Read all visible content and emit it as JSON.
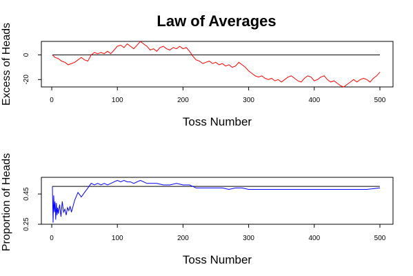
{
  "chart_data": [
    {
      "type": "line",
      "title": "Law of Averages",
      "xlabel": "Toss Number",
      "ylabel": "Excess of Heads",
      "xlim": [
        1,
        500
      ],
      "ylim": [
        -26,
        11
      ],
      "x_ticks": [
        0,
        100,
        200,
        300,
        400,
        500
      ],
      "y_ticks": [
        -20,
        0
      ],
      "reference_line": 0,
      "color": "#ff0000",
      "series": [
        {
          "x": [
            1,
            5,
            10,
            15,
            20,
            25,
            30,
            35,
            40,
            45,
            50,
            55,
            60,
            65,
            70,
            75,
            80,
            85,
            90,
            95,
            100,
            105,
            110,
            115,
            120,
            125,
            130,
            135,
            140,
            145,
            150,
            155,
            160,
            165,
            170,
            175,
            180,
            185,
            190,
            195,
            200,
            205,
            210,
            215,
            220,
            225,
            230,
            235,
            240,
            245,
            250,
            255,
            260,
            265,
            270,
            275,
            280,
            285,
            290,
            295,
            300,
            305,
            310,
            315,
            320,
            325,
            330,
            335,
            340,
            345,
            350,
            355,
            360,
            365,
            370,
            375,
            380,
            385,
            390,
            395,
            400,
            405,
            410,
            415,
            420,
            425,
            430,
            435,
            440,
            445,
            450,
            455,
            460,
            465,
            470,
            475,
            480,
            485,
            490,
            495,
            500
          ],
          "values": [
            0,
            -2,
            -3,
            -5,
            -6,
            -8,
            -7,
            -6,
            -4,
            -2,
            -4,
            -5,
            0,
            2,
            1,
            2,
            1,
            3,
            1,
            4,
            7,
            8,
            6,
            9,
            7,
            5,
            8,
            11,
            9,
            7,
            4,
            5,
            3,
            6,
            7,
            5,
            4,
            6,
            5,
            7,
            5,
            6,
            3,
            -1,
            -4,
            -5,
            -7,
            -6,
            -5,
            -7,
            -6,
            -8,
            -7,
            -9,
            -8,
            -10,
            -9,
            -6,
            -8,
            -10,
            -13,
            -15,
            -17,
            -18,
            -17,
            -19,
            -20,
            -19,
            -21,
            -20,
            -22,
            -20,
            -18,
            -17,
            -19,
            -21,
            -22,
            -19,
            -17,
            -18,
            -21,
            -20,
            -18,
            -17,
            -20,
            -22,
            -21,
            -23,
            -25,
            -26,
            -24,
            -22,
            -20,
            -22,
            -20,
            -19,
            -20,
            -22,
            -19,
            -17,
            -14
          ]
        }
      ]
    },
    {
      "type": "line",
      "xlabel": "Toss Number",
      "ylabel": "Proportion of Heads",
      "xlim": [
        1,
        500
      ],
      "ylim": [
        0.25,
        0.56
      ],
      "x_ticks": [
        0,
        100,
        200,
        300,
        400,
        500
      ],
      "y_ticks": [
        0.25,
        0.45
      ],
      "y_tick_labels": [
        "0.25",
        "0.45"
      ],
      "reference_line": 0.5,
      "color": "#0000ff",
      "series": [
        {
          "x": [
            1,
            2,
            3,
            4,
            5,
            6,
            7,
            8,
            9,
            10,
            12,
            14,
            16,
            18,
            20,
            22,
            24,
            26,
            28,
            30,
            35,
            40,
            45,
            50,
            55,
            60,
            65,
            70,
            75,
            80,
            85,
            90,
            95,
            100,
            105,
            110,
            115,
            120,
            125,
            130,
            135,
            140,
            145,
            150,
            160,
            170,
            180,
            190,
            200,
            210,
            220,
            230,
            240,
            250,
            260,
            270,
            280,
            290,
            300,
            320,
            340,
            360,
            380,
            400,
            420,
            440,
            460,
            480,
            500
          ],
          "values": [
            0.5,
            0.26,
            0.44,
            0.33,
            0.4,
            0.28,
            0.39,
            0.31,
            0.36,
            0.32,
            0.38,
            0.3,
            0.4,
            0.33,
            0.35,
            0.31,
            0.36,
            0.34,
            0.37,
            0.33,
            0.41,
            0.46,
            0.43,
            0.46,
            0.49,
            0.52,
            0.51,
            0.52,
            0.51,
            0.52,
            0.51,
            0.52,
            0.53,
            0.54,
            0.53,
            0.54,
            0.53,
            0.53,
            0.52,
            0.53,
            0.54,
            0.53,
            0.52,
            0.52,
            0.52,
            0.51,
            0.51,
            0.52,
            0.51,
            0.51,
            0.49,
            0.49,
            0.49,
            0.49,
            0.49,
            0.48,
            0.49,
            0.49,
            0.48,
            0.48,
            0.48,
            0.48,
            0.48,
            0.48,
            0.48,
            0.48,
            0.48,
            0.48,
            0.49
          ]
        }
      ]
    }
  ]
}
